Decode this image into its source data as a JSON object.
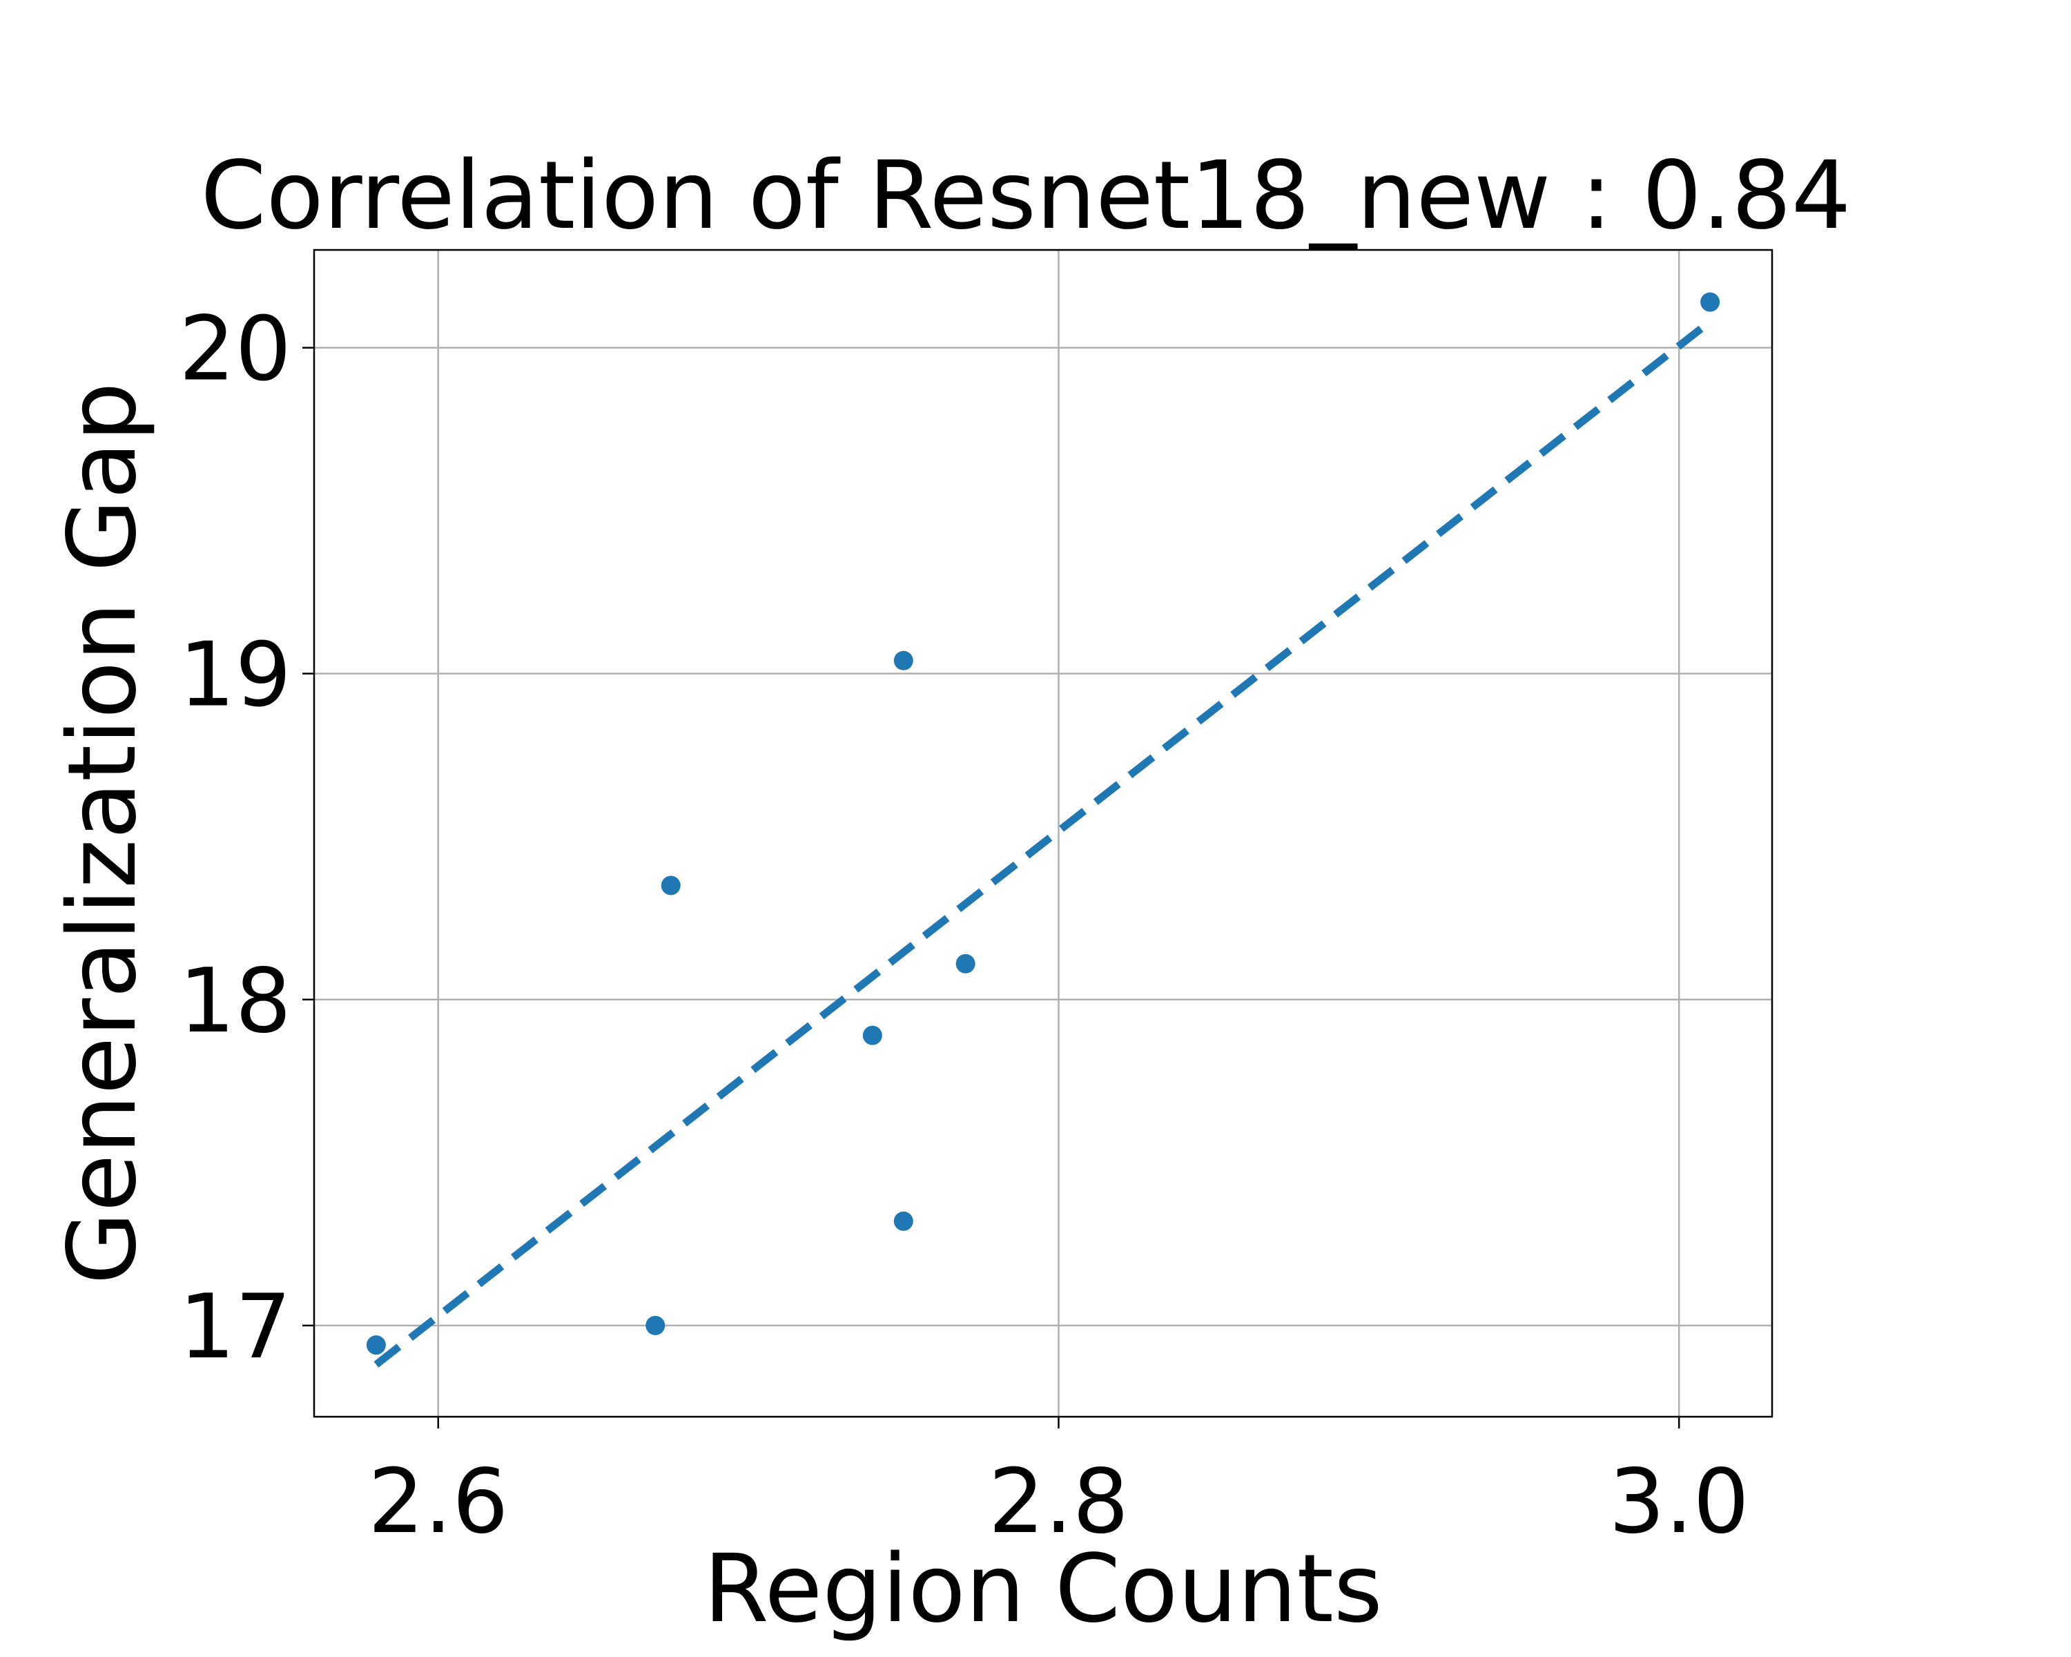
{
  "chart_data": {
    "type": "scatter",
    "title": "Correlation of Resnet18_new : 0.84",
    "xlabel": "Region Counts",
    "ylabel": "Generalization Gap",
    "xlim": [
      2.56,
      3.03
    ],
    "ylim": [
      16.72,
      20.3
    ],
    "grid": true,
    "x_ticks": [
      {
        "value": 2.6,
        "label": "2.6"
      },
      {
        "value": 2.8,
        "label": "2.8"
      },
      {
        "value": 3.0,
        "label": "3.0"
      }
    ],
    "y_ticks": [
      {
        "value": 17,
        "label": "17"
      },
      {
        "value": 18,
        "label": "18"
      },
      {
        "value": 19,
        "label": "19"
      },
      {
        "value": 20,
        "label": "20"
      }
    ],
    "series": [
      {
        "kind": "points",
        "color": "#1f77b4",
        "points": [
          {
            "x": 2.58,
            "y": 16.94
          },
          {
            "x": 2.67,
            "y": 17.0
          },
          {
            "x": 2.675,
            "y": 18.35
          },
          {
            "x": 2.74,
            "y": 17.89
          },
          {
            "x": 2.75,
            "y": 19.04
          },
          {
            "x": 2.75,
            "y": 17.32
          },
          {
            "x": 2.77,
            "y": 18.11
          },
          {
            "x": 3.01,
            "y": 20.14
          }
        ]
      },
      {
        "kind": "fit-line",
        "color": "#1f77b4",
        "style": "dashed",
        "points": [
          {
            "x": 2.58,
            "y": 16.88
          },
          {
            "x": 3.01,
            "y": 20.08
          }
        ]
      }
    ]
  }
}
